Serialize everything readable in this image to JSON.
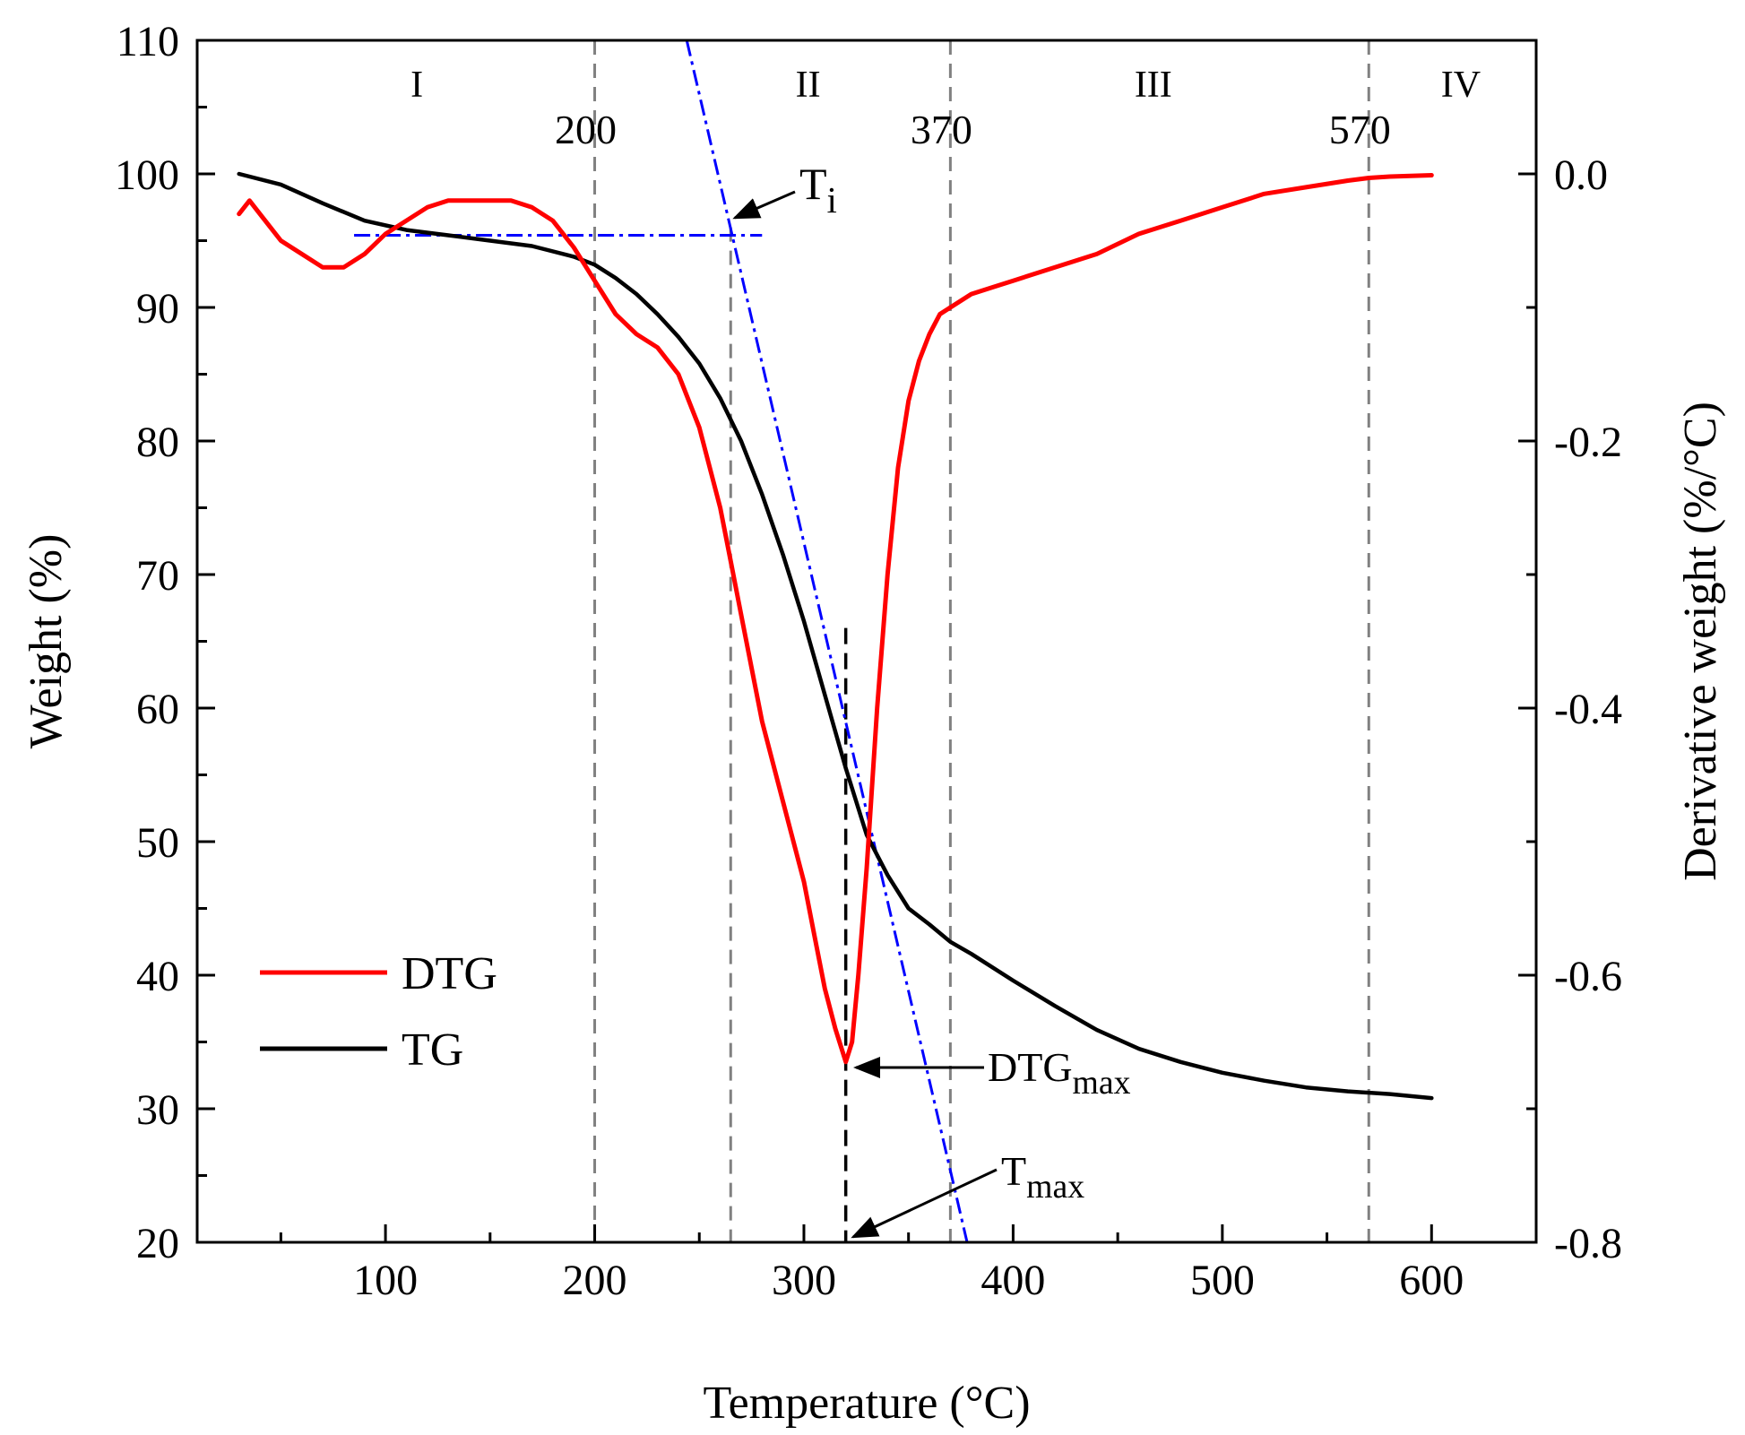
{
  "chart_data": {
    "type": "line",
    "xlabel": "Temperature (°C)",
    "ylabel_left": "Weight (%)",
    "ylabel_right": "Derivative weight (%/°C)",
    "xlim": [
      10,
      650
    ],
    "ylim_left": [
      20,
      110
    ],
    "ylim_right": [
      -0.8,
      0.1
    ],
    "x_ticks": [
      100,
      200,
      300,
      400,
      500,
      600
    ],
    "x_tick_labels": [
      "100",
      "200",
      "300",
      "400",
      "500",
      "600"
    ],
    "x_minor_ticks": [
      50,
      150,
      250,
      350,
      450,
      550
    ],
    "y_left_ticks": [
      20,
      30,
      40,
      50,
      60,
      70,
      80,
      90,
      100,
      110
    ],
    "y_left_tick_labels": [
      "20",
      "30",
      "40",
      "50",
      "60",
      "70",
      "80",
      "90",
      "100",
      "110"
    ],
    "y_right_ticks": [
      -0.8,
      -0.6,
      -0.4,
      -0.2,
      0.0
    ],
    "y_right_tick_labels": [
      "-0.8",
      "-0.6",
      "-0.4",
      "-0.2",
      "0.0"
    ],
    "y_right_minor_ticks": [
      -0.7,
      -0.5,
      -0.3,
      -0.1
    ],
    "series": [
      {
        "name": "TG",
        "axis": "left",
        "color": "#000000",
        "x": [
          30,
          50,
          70,
          90,
          110,
          130,
          150,
          170,
          190,
          200,
          210,
          220,
          230,
          240,
          250,
          260,
          270,
          280,
          290,
          300,
          310,
          320,
          330,
          340,
          350,
          360,
          370,
          380,
          400,
          420,
          440,
          460,
          480,
          500,
          520,
          540,
          560,
          580,
          600
        ],
        "y": [
          100,
          99.2,
          97.8,
          96.5,
          95.8,
          95.4,
          95.0,
          94.6,
          93.8,
          93.2,
          92.2,
          91.0,
          89.5,
          87.8,
          85.8,
          83.2,
          80.0,
          76.0,
          71.5,
          66.5,
          61.0,
          55.5,
          50.5,
          47.5,
          45.0,
          43.8,
          42.5,
          41.6,
          39.6,
          37.7,
          35.9,
          34.5,
          33.5,
          32.7,
          32.1,
          31.6,
          31.3,
          31.1,
          30.8
        ]
      },
      {
        "name": "DTG",
        "axis": "right",
        "color": "#ff0000",
        "x": [
          30,
          35,
          40,
          50,
          60,
          70,
          80,
          90,
          100,
          110,
          120,
          130,
          140,
          150,
          160,
          170,
          180,
          190,
          200,
          210,
          220,
          230,
          240,
          250,
          260,
          265,
          270,
          280,
          290,
          300,
          305,
          310,
          315,
          320,
          323,
          326,
          330,
          335,
          340,
          345,
          350,
          355,
          360,
          365,
          370,
          380,
          390,
          400,
          420,
          440,
          460,
          480,
          500,
          520,
          540,
          560,
          570,
          580,
          600
        ],
        "y": [
          -0.03,
          -0.02,
          -0.03,
          -0.05,
          -0.06,
          -0.07,
          -0.07,
          -0.06,
          -0.045,
          -0.035,
          -0.025,
          -0.02,
          -0.02,
          -0.02,
          -0.02,
          -0.025,
          -0.035,
          -0.055,
          -0.08,
          -0.105,
          -0.12,
          -0.13,
          -0.15,
          -0.19,
          -0.25,
          -0.29,
          -0.33,
          -0.41,
          -0.47,
          -0.53,
          -0.57,
          -0.61,
          -0.64,
          -0.665,
          -0.65,
          -0.6,
          -0.52,
          -0.4,
          -0.3,
          -0.22,
          -0.17,
          -0.14,
          -0.12,
          -0.105,
          -0.1,
          -0.09,
          -0.085,
          -0.08,
          -0.07,
          -0.06,
          -0.045,
          -0.035,
          -0.025,
          -0.015,
          -0.01,
          -0.005,
          -0.003,
          -0.002,
          -0.001
        ]
      }
    ],
    "region_lines": [
      200,
      370,
      570
    ],
    "region_line_labels": [
      "200",
      "370",
      "570"
    ],
    "region_labels": [
      {
        "text": "I",
        "x": 115
      },
      {
        "text": "II",
        "x": 302
      },
      {
        "text": "III",
        "x": 467
      },
      {
        "text": "IV",
        "x": 614
      }
    ],
    "ti_line_x": 265,
    "tmax_line_x": 320,
    "tangent_horizontal": {
      "x1": 85,
      "x2": 280,
      "y": 95.4
    },
    "tangent_steep": {
      "x1": 244,
      "y1": 110,
      "x2": 378,
      "y2": 20
    },
    "annotations": {
      "ti": {
        "main": "T",
        "sub": "i"
      },
      "dtgmax": {
        "main": "DTG",
        "sub": "max"
      },
      "tmax": {
        "main": "T",
        "sub": "max"
      }
    },
    "legend": {
      "position": "bottom-left",
      "entries": [
        {
          "label": "DTG",
          "color": "#ff0000"
        },
        {
          "label": "TG",
          "color": "#000000"
        }
      ]
    }
  }
}
